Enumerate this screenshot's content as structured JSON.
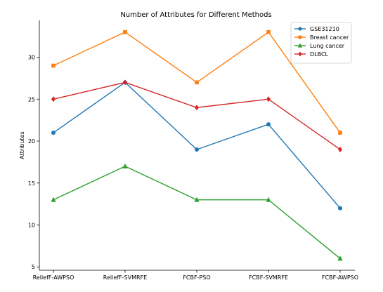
{
  "chart_data": {
    "type": "line",
    "title": "Number of Attributes for Different Methods",
    "xlabel": "",
    "ylabel": "Attributes",
    "categories": [
      "ReliefF-AWPSO",
      "ReliefF-SVMRFE",
      "FCBF-PSO",
      "FCBF-SVMRFE",
      "FCBF-AWPSO"
    ],
    "ylim": [
      4.6,
      34.4
    ],
    "yticks": [
      5,
      10,
      15,
      20,
      25,
      30
    ],
    "grid": false,
    "legend_position": "top-right",
    "series": [
      {
        "name": "GSE31210",
        "color": "#1f77b4",
        "marker": "circle",
        "values": [
          21,
          27,
          19,
          22,
          12
        ]
      },
      {
        "name": "Breast cancer",
        "color": "#ff7f0e",
        "marker": "square",
        "values": [
          29,
          33,
          27,
          33,
          21
        ]
      },
      {
        "name": "Lung cancer",
        "color": "#2ca02c",
        "marker": "triangle",
        "values": [
          13,
          17,
          13,
          13,
          6
        ]
      },
      {
        "name": "DLBCL",
        "color": "#d62728",
        "marker": "diamond",
        "values": [
          25,
          27,
          24,
          25,
          19
        ]
      }
    ]
  }
}
